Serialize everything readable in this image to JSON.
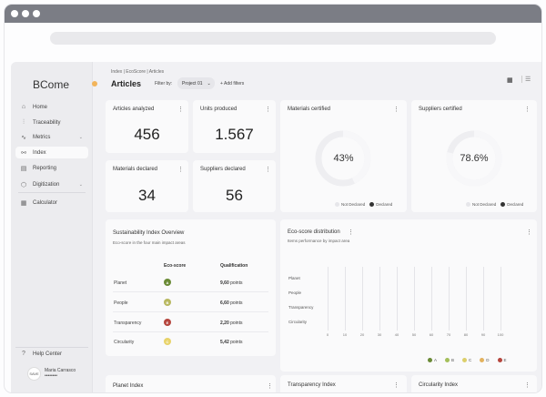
{
  "app": {
    "logo": "BCome"
  },
  "sidebar": {
    "items": [
      {
        "label": "Home",
        "icon": "home-icon",
        "glyph": "⌂"
      },
      {
        "label": "Traceability",
        "icon": "sliders-icon",
        "glyph": "⫶"
      },
      {
        "label": "Metrics",
        "icon": "trend-icon",
        "glyph": "∿",
        "caret": "⌄"
      },
      {
        "label": "Index",
        "icon": "nodes-icon",
        "glyph": "⚯"
      },
      {
        "label": "Reporting",
        "icon": "document-icon",
        "glyph": "▤"
      },
      {
        "label": "Digitization",
        "icon": "cube-icon",
        "glyph": "⬡",
        "caret": "⌄"
      },
      {
        "label": "Calculator",
        "icon": "calculator-icon",
        "glyph": "▦"
      }
    ],
    "help": "Help Center",
    "user": {
      "name": "Maria Carrasco",
      "role": "••••••••",
      "avatar_text": "SAVE"
    }
  },
  "header": {
    "breadcrumb": "Index | EcoScore | Articles",
    "title": "Articles",
    "filter_label": "Filter by:",
    "filter_value": "Project 01",
    "add_filters": "+ Add filters"
  },
  "kpis": {
    "articles": {
      "title": "Articles analyzed",
      "value": "456"
    },
    "units": {
      "title": "Units produced",
      "value": "1.567"
    },
    "materials_declared": {
      "title": "Materials declared",
      "value": "34"
    },
    "suppliers_declared": {
      "title": "Suppliers declared",
      "value": "56"
    }
  },
  "donuts": {
    "materials": {
      "title": "Materials certified",
      "pct": "43%",
      "fraction": 0.43
    },
    "suppliers": {
      "title": "Suppliers certified",
      "pct": "78.6%",
      "fraction": 0.786
    },
    "legend_not": "Not Declared",
    "legend_declared": "Declared"
  },
  "sio": {
    "title": "Sustainability Index Overview",
    "subtitle": "Eco-score in the four main impact areas",
    "col_eco": "Eco-score",
    "col_qual": "Qualification",
    "rows": [
      {
        "label": "Planet",
        "grade": "A",
        "color": "#6a8a36",
        "value": "9,60",
        "unit": "points"
      },
      {
        "label": "People",
        "grade": "B",
        "color": "#b8b860",
        "value": "6,60",
        "unit": "points"
      },
      {
        "label": "Transparency",
        "grade": "E",
        "color": "#b5453d",
        "value": "2,20",
        "unit": "points"
      },
      {
        "label": "Circularity",
        "grade": "C",
        "color": "#e8d36a",
        "value": "5,42",
        "unit": "points"
      }
    ]
  },
  "eco": {
    "title": "Eco-score distribution",
    "subtitle": "Items performance by impact area",
    "categories": [
      "Planet",
      "People",
      "Transparency",
      "Circularity"
    ],
    "xticks": [
      "0",
      "10",
      "20",
      "30",
      "40",
      "50",
      "60",
      "70",
      "80",
      "90",
      "100"
    ],
    "legend": [
      {
        "label": "A",
        "color": "#6a8a36"
      },
      {
        "label": "B",
        "color": "#a4bf5a"
      },
      {
        "label": "C",
        "color": "#dccf6b"
      },
      {
        "label": "D",
        "color": "#e3b25e"
      },
      {
        "label": "E",
        "color": "#b5453d"
      }
    ]
  },
  "bottom": {
    "planet": "Planet Index",
    "transparency": "Transparency Index",
    "circularity": "Circularity Index"
  },
  "colors": {
    "declared": "#333333",
    "not_declared": "#e6e6ea",
    "accent_dot": "#f2b45b"
  }
}
